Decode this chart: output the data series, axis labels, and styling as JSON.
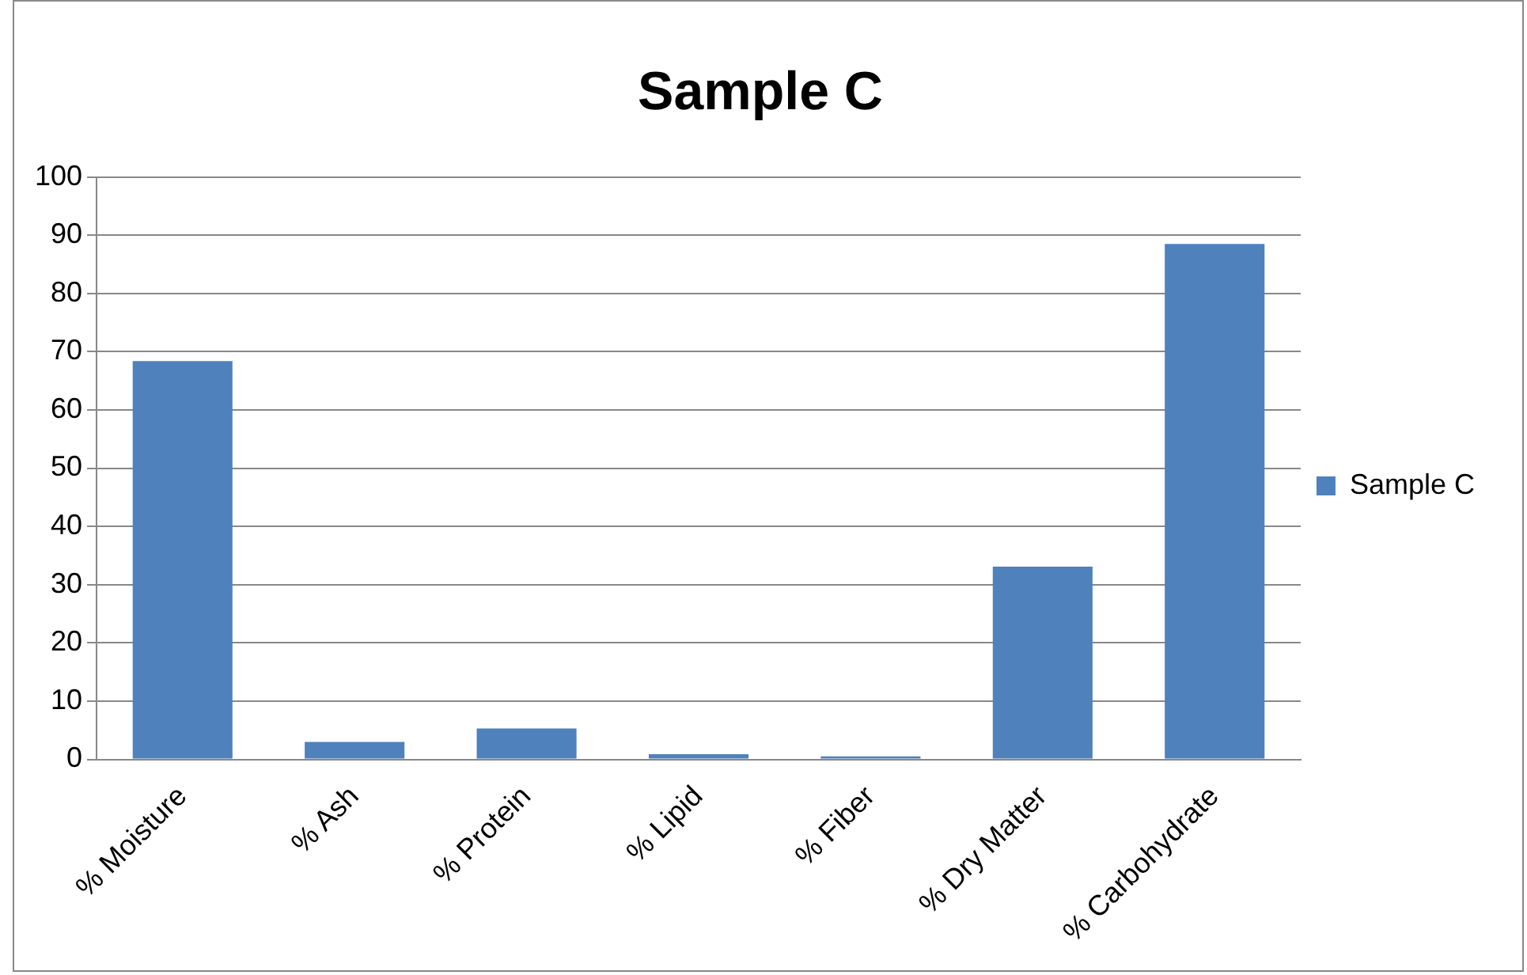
{
  "chart_data": {
    "type": "bar",
    "title": "Sample C",
    "categories": [
      "% Moisture",
      "% Ash",
      "% Protein",
      "% Lipid",
      "% Fiber",
      "% Dry Matter",
      "% Carbohydrate"
    ],
    "series": [
      {
        "name": "Sample C",
        "color": "#4f81bd",
        "values": [
          68.4,
          3.0,
          5.3,
          0.9,
          0.5,
          33.1,
          88.5
        ]
      }
    ],
    "ylim": [
      0,
      100
    ],
    "yticks": [
      0,
      10,
      20,
      30,
      40,
      50,
      60,
      70,
      80,
      90,
      100
    ],
    "grid": "y",
    "legend": "right"
  }
}
